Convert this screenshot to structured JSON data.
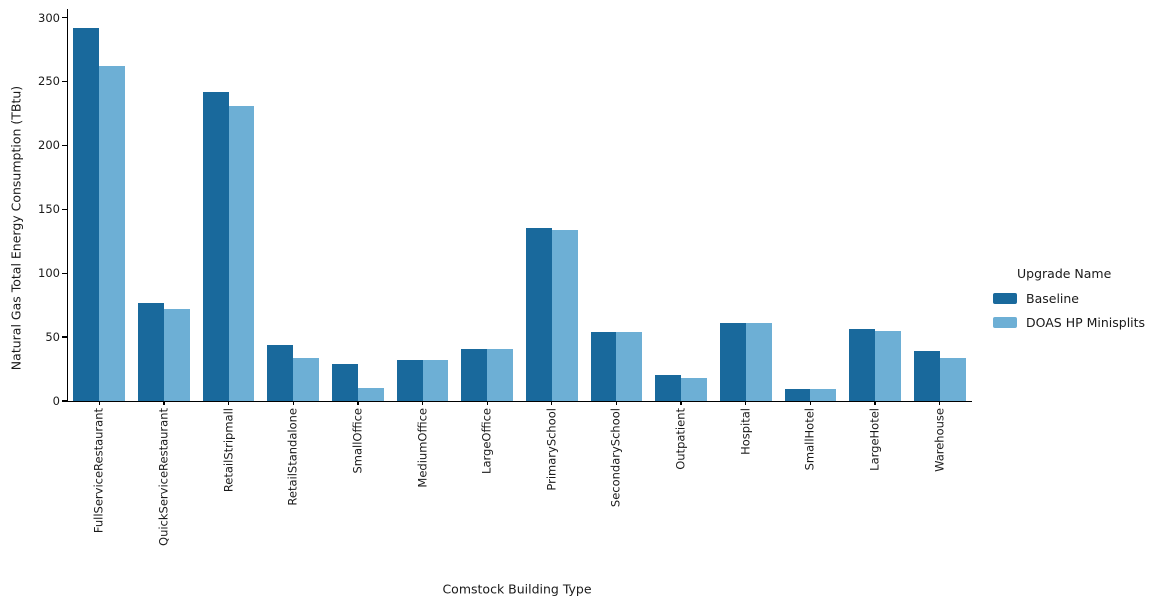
{
  "figure": {
    "xlabel": "Comstock Building Type",
    "ylabel": "Natural Gas Total Energy Consumption (TBtu)"
  },
  "legend": {
    "title": "Upgrade Name",
    "items": [
      {
        "label": "Baseline",
        "color": "#19699c"
      },
      {
        "label": "DOAS HP Minisplits",
        "color": "#6dafd5"
      }
    ]
  },
  "colors": {
    "baseline_bar": "#19699c",
    "doas_bar": "#6dafd5",
    "axis": "#000000",
    "text": "#1a1a1a",
    "background": "#ffffff"
  },
  "chart_data": {
    "type": "bar",
    "title": "",
    "xlabel": "Comstock Building Type",
    "ylabel": "Natural Gas Total Energy Consumption (TBtu)",
    "categories": [
      "FullServiceRestaurant",
      "QuickServiceRestaurant",
      "RetailStripmall",
      "RetailStandalone",
      "SmallOffice",
      "MediumOffice",
      "LargeOffice",
      "PrimarySchool",
      "SecondarySchool",
      "Outpatient",
      "Hospital",
      "SmallHotel",
      "LargeHotel",
      "Warehouse"
    ],
    "series": [
      {
        "name": "Baseline",
        "color": "#19699c",
        "values": [
          292,
          77,
          242,
          44,
          29,
          32,
          41,
          135,
          54,
          20,
          61,
          9,
          56,
          39
        ]
      },
      {
        "name": "DOAS HP Minisplits",
        "color": "#6dafd5",
        "values": [
          262,
          72,
          231,
          34,
          10,
          32,
          41,
          134,
          54,
          18,
          61,
          9,
          55,
          34
        ]
      }
    ],
    "ylim": [
      0,
      300
    ],
    "yticks": [
      0,
      50,
      100,
      150,
      200,
      250,
      300
    ],
    "grid": false,
    "legend_title": "Upgrade Name",
    "legend_position": "right"
  }
}
